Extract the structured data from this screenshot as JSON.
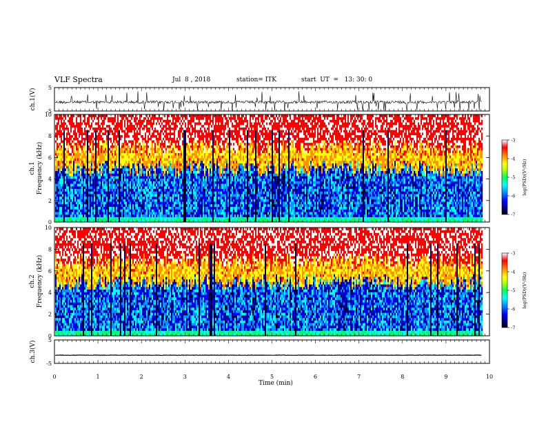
{
  "header": {
    "title": "VLF Spectra",
    "date": "Jul  8 , 2018",
    "station": "station= ITK",
    "start_ut": "start  UT  =   13: 30: 0"
  },
  "chart_data": [
    {
      "type": "line",
      "panel": "ch1-waveform",
      "ylabel": "ch.1(V)",
      "yticks": [
        "5",
        "-5"
      ],
      "ylim": [
        -5,
        5
      ],
      "xlim": [
        0,
        10
      ],
      "data_xmax": 9.82,
      "baseline": -1.2,
      "color": "#000000"
    },
    {
      "type": "heatmap",
      "panel": "ch1-spectrogram",
      "ylabel": "ch.1\nFrequency  (kHz)",
      "ylabel_line1": "ch.1",
      "ylabel_line2": "Frequency  (kHz)",
      "yticks": [
        "0",
        "2",
        "4",
        "6",
        "8",
        "10"
      ],
      "ylim": [
        0,
        10
      ],
      "xlim": [
        0,
        10
      ],
      "data_xmax": 9.82,
      "colorbar": {
        "label": "log(PSD)(V²/Hz)",
        "ticks": [
          "-3",
          "-4",
          "-5",
          "-6",
          "-7"
        ],
        "range": [
          -7,
          -3
        ]
      }
    },
    {
      "type": "heatmap",
      "panel": "ch2-spectrogram",
      "ylabel": "ch.2\nFrequency  (kHz)",
      "ylabel_line1": "ch.2",
      "ylabel_line2": "Frequency  (kHz)",
      "yticks": [
        "0",
        "2",
        "4",
        "6",
        "8",
        "10"
      ],
      "ylim": [
        0,
        10
      ],
      "xlim": [
        0,
        10
      ],
      "data_xmax": 9.82,
      "colorbar": {
        "label": "log(PSD)(V²/Hz)",
        "ticks": [
          "-3",
          "-4",
          "-5",
          "-6",
          "-7"
        ],
        "range": [
          -7,
          -3
        ]
      }
    },
    {
      "type": "line",
      "panel": "ch3-waveform",
      "ylabel": "ch.3(V)",
      "yticks": [
        "5",
        "-5"
      ],
      "ylim": [
        -5,
        5
      ],
      "xlim": [
        0,
        10
      ],
      "data_xmax": 9.82,
      "baseline": -1.5,
      "color": "#000000"
    }
  ],
  "xaxis": {
    "label": "Time  (min)",
    "ticks": [
      "0",
      "1",
      "2",
      "3",
      "4",
      "5",
      "6",
      "7",
      "8",
      "9",
      "10"
    ]
  },
  "colormap": [
    "#000000",
    "#00007a",
    "#0000ff",
    "#0096ff",
    "#00ffff",
    "#00ff60",
    "#b4ff00",
    "#ffff00",
    "#ff9600",
    "#ff0000",
    "#ffffff"
  ]
}
